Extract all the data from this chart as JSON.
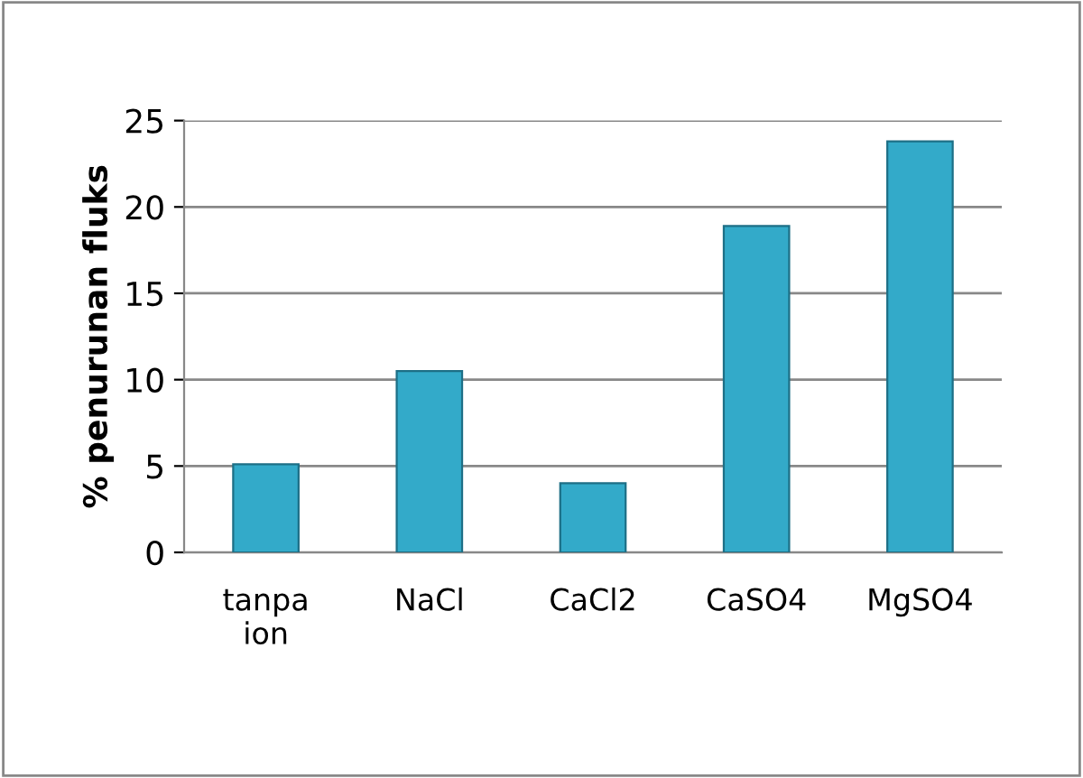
{
  "chart_data": {
    "type": "bar",
    "ylabel": "% penurunan fluks",
    "categories": [
      "tanpa ion",
      "NaCl",
      "CaCl2",
      "CaSO4",
      "MgSO4"
    ],
    "values": [
      5.1,
      10.5,
      4.0,
      18.9,
      23.8
    ],
    "color": "#33aac9",
    "ylim": [
      0,
      25
    ],
    "yticks": [
      0,
      5,
      10,
      15,
      20,
      25
    ],
    "grid": "y"
  }
}
